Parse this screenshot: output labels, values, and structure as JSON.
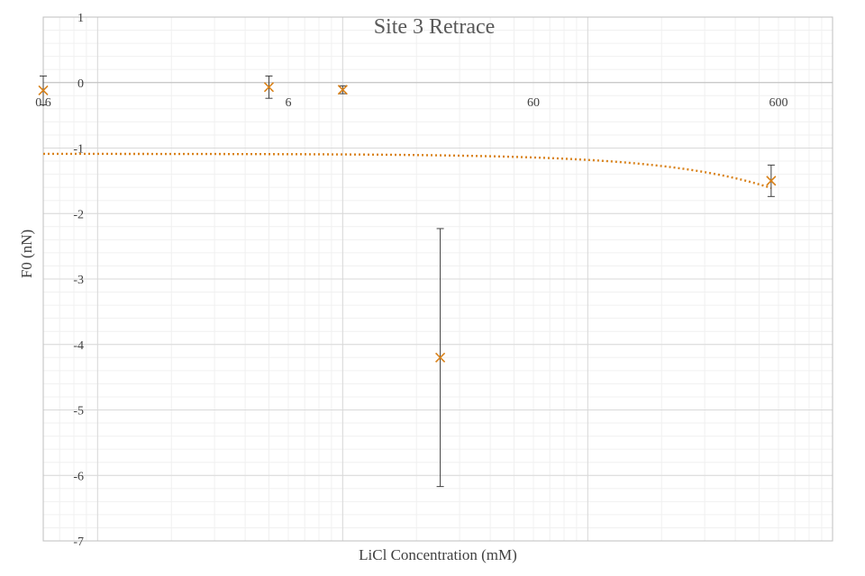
{
  "chart_data": {
    "type": "scatter",
    "title": "Site 3 Retrace",
    "xlabel": "LiCl Concentration (mM)",
    "ylabel": "F0 (nN)",
    "x_scale": "log",
    "xlim": [
      0.6,
      1000
    ],
    "ylim": [
      -7,
      1
    ],
    "x_ticks": [
      0.6,
      6,
      60,
      600
    ],
    "x_tick_labels": [
      "0.6",
      "6",
      "60",
      "600"
    ],
    "y_ticks": [
      1,
      0,
      -1,
      -2,
      -3,
      -4,
      -5,
      -6,
      -7
    ],
    "y_tick_labels": [
      "1",
      "0",
      "-1",
      "-2",
      "-3",
      "-4",
      "-5",
      "-6",
      "-7"
    ],
    "grid": true,
    "series": [
      {
        "marker": "x",
        "color": "#d9821a",
        "points": [
          {
            "x": 0.6,
            "y": -0.12,
            "err": 0.22
          },
          {
            "x": 5,
            "y": -0.07,
            "err": 0.17
          },
          {
            "x": 10,
            "y": -0.11,
            "err": 0.06
          },
          {
            "x": 25,
            "y": -4.2,
            "err": 1.97
          },
          {
            "x": 560,
            "y": -1.5,
            "err": 0.24
          }
        ]
      }
    ],
    "trendline": {
      "style": "dotted",
      "color": "#d9821a",
      "type": "linear",
      "x_range": [
        0.6,
        560
      ]
    }
  }
}
